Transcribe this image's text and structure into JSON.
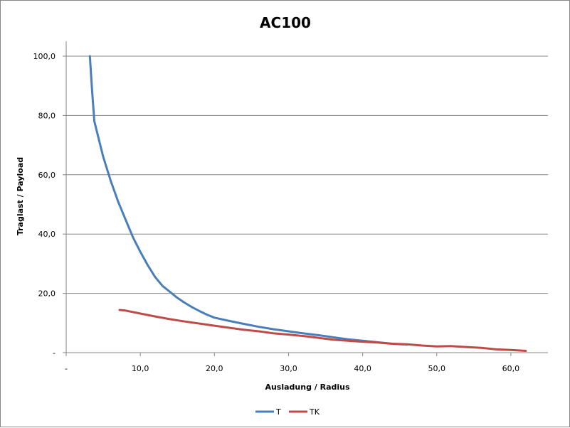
{
  "chart_data": {
    "type": "line",
    "title": "AC100",
    "xlabel": "Ausladung / Radius",
    "ylabel": "Traglast / Payload",
    "xlim": [
      0,
      65
    ],
    "ylim": [
      0,
      100
    ],
    "x_ticks": [
      0,
      10,
      20,
      30,
      40,
      50,
      60
    ],
    "x_tick_labels": [
      "-",
      "10,0",
      "20,0",
      "30,0",
      "40,0",
      "50,0",
      "60,0"
    ],
    "y_ticks": [
      0,
      20,
      40,
      60,
      80,
      100
    ],
    "y_tick_labels": [
      "-",
      "20,0",
      "40,0",
      "60,0",
      "80,0",
      "100,0"
    ],
    "grid": "horizontal",
    "legend_position": "bottom",
    "series": [
      {
        "name": "T",
        "color": "#4a7ebb",
        "points": [
          [
            3.2,
            100
          ],
          [
            3.5,
            88
          ],
          [
            3.8,
            78
          ],
          [
            4.3,
            73
          ],
          [
            5.0,
            66
          ],
          [
            6.0,
            58
          ],
          [
            7.0,
            51
          ],
          [
            8.0,
            45
          ],
          [
            9.0,
            39
          ],
          [
            10.0,
            34
          ],
          [
            11.0,
            29.5
          ],
          [
            12.0,
            25.5
          ],
          [
            13.0,
            22.5
          ],
          [
            14.0,
            20.5
          ],
          [
            15.0,
            18.5
          ],
          [
            16.0,
            16.8
          ],
          [
            17.0,
            15.3
          ],
          [
            18.0,
            14
          ],
          [
            19.0,
            12.8
          ],
          [
            20.0,
            11.8
          ],
          [
            22.0,
            10.7
          ],
          [
            24.0,
            9.7
          ],
          [
            26.0,
            8.7
          ],
          [
            28.0,
            7.9
          ],
          [
            30.0,
            7.2
          ],
          [
            32.0,
            6.5
          ],
          [
            34.0,
            5.9
          ],
          [
            36.0,
            5.2
          ],
          [
            38.0,
            4.5
          ],
          [
            40.0,
            4.0
          ],
          [
            42.0,
            3.5
          ],
          [
            44.0,
            3.0
          ],
          [
            46.0,
            2.7
          ]
        ]
      },
      {
        "name": "TK",
        "color": "#be4b48",
        "points": [
          [
            7.2,
            14.4
          ],
          [
            8.0,
            14.2
          ],
          [
            10.0,
            13.2
          ],
          [
            12.0,
            12.2
          ],
          [
            14.0,
            11.3
          ],
          [
            16.0,
            10.5
          ],
          [
            18.0,
            9.8
          ],
          [
            20.0,
            9.1
          ],
          [
            22.0,
            8.4
          ],
          [
            24.0,
            7.7
          ],
          [
            26.0,
            7.2
          ],
          [
            28.0,
            6.5
          ],
          [
            30.0,
            6.1
          ],
          [
            32.0,
            5.6
          ],
          [
            34.0,
            5.0
          ],
          [
            36.0,
            4.4
          ],
          [
            38.0,
            4.0
          ],
          [
            40.0,
            3.7
          ],
          [
            42.0,
            3.4
          ],
          [
            44.0,
            3.0
          ],
          [
            46.0,
            2.8
          ],
          [
            48.0,
            2.4
          ],
          [
            50.0,
            2.1
          ],
          [
            52.0,
            2.2
          ],
          [
            54.0,
            1.9
          ],
          [
            56.0,
            1.6
          ],
          [
            58.0,
            1.1
          ],
          [
            60.0,
            0.9
          ],
          [
            62.0,
            0.6
          ]
        ]
      }
    ]
  }
}
